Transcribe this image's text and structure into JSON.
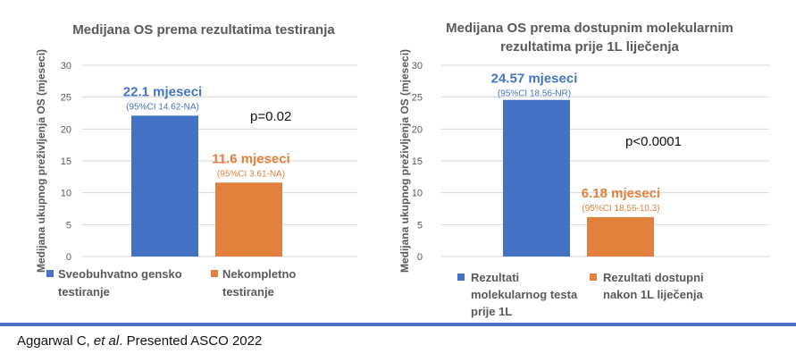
{
  "colors": {
    "blue": "#4472C4",
    "orange": "#E0803C",
    "grid": "#D9D9D9",
    "axis_text": "#595959",
    "title_text": "#595959",
    "divider": "#4A72C4"
  },
  "citation": {
    "before": "Aggarwal C, ",
    "italic": "et al",
    "after": ". Presented ASCO 2022"
  },
  "chart_data": [
    {
      "type": "bar",
      "title_lines": [
        "Medijana OS prema rezultatima testiranja"
      ],
      "ylabel": "Medijana ukupnog preživljenja  OS (mjeseci)",
      "ylim": [
        0,
        30
      ],
      "yticks": [
        "0",
        "5",
        "10",
        "15",
        "20",
        "25",
        "30"
      ],
      "grid": true,
      "categories": [
        "Sveobuhvatno gensko testiranje",
        "Nekompletno testiranje"
      ],
      "values": [
        22.1,
        11.6
      ],
      "bar_colors": [
        "#4472C4",
        "#E0803C"
      ],
      "labels": [
        "22.1 mjeseci",
        "11.6 mjeseci"
      ],
      "sublabels": [
        "(95%CI 14.62-NA)",
        "(95%CI 3.61-NA)"
      ],
      "annotation": "p=0.02",
      "legend": [
        {
          "color": "#4472C4",
          "lines": [
            "Sveobuhvatno gensko",
            "testiranje"
          ]
        },
        {
          "color": "#E0803C",
          "lines": [
            "Nekompletno",
            "testiranje"
          ]
        }
      ]
    },
    {
      "type": "bar",
      "title_lines": [
        "Medijana OS prema dostupnim molekularnim",
        "rezultatima prije 1L liječenja"
      ],
      "ylabel": "Medijana ukupnog preživljenja  OS (mjeseci)",
      "ylim": [
        0,
        30
      ],
      "yticks": [
        "0",
        "5",
        "10",
        "15",
        "20",
        "25",
        "30"
      ],
      "grid": true,
      "categories": [
        "Rezultati molekularnog testa prije 1L",
        "Rezultati dostupni nakon 1L liječenja"
      ],
      "values": [
        24.57,
        6.18
      ],
      "bar_colors": [
        "#4472C4",
        "#E0803C"
      ],
      "labels": [
        "24.57 mjeseci",
        "6.18 mjeseci"
      ],
      "sublabels": [
        "(95%CI 18.56-NR)",
        "(95%CI 18.56-10.3)"
      ],
      "annotation": "p<0.0001",
      "legend": [
        {
          "color": "#4472C4",
          "lines": [
            "Rezultati",
            "molekularnog testa",
            "prije 1L"
          ]
        },
        {
          "color": "#E0803C",
          "lines": [
            "Rezultati dostupni",
            "nakon  1L liječenja"
          ]
        }
      ]
    }
  ]
}
